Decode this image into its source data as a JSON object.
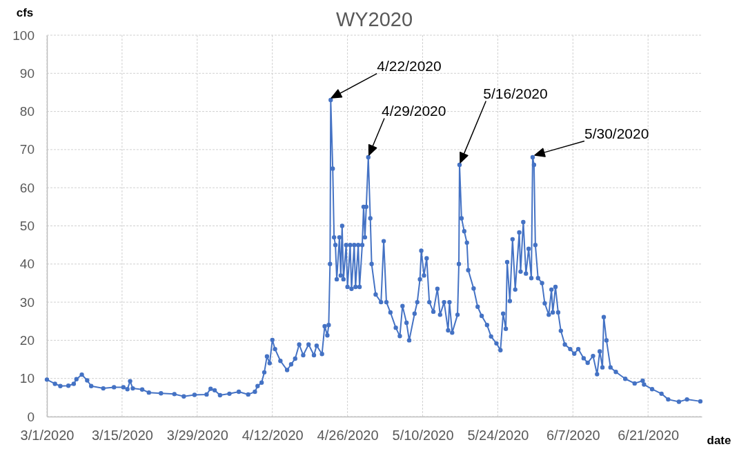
{
  "chart_data": {
    "type": "line",
    "title": "WY2020",
    "xlabel": "date",
    "ylabel": "cfs",
    "x": [
      "2020-03-01",
      "2020-03-02T12:00",
      "2020-03-03T12:00",
      "2020-03-05",
      "2020-03-06",
      "2020-03-06T12:00",
      "2020-03-07T12:00",
      "2020-03-08T12:00",
      "2020-03-09T06:00",
      "2020-03-11T12:00",
      "2020-03-13T12:00",
      "2020-03-15T06:00",
      "2020-03-16",
      "2020-03-16T12:00",
      "2020-03-17",
      "2020-03-18T18:00",
      "2020-03-20",
      "2020-03-22T06:00",
      "2020-03-24T18:00",
      "2020-03-26T12:00",
      "2020-03-28T12:00",
      "2020-03-30T18:00",
      "2020-03-31T12:00",
      "2020-04-01T06:00",
      "2020-04-02T06:00",
      "2020-04-04",
      "2020-04-05T18:00",
      "2020-04-07T12:00",
      "2020-04-08T18:00",
      "2020-04-09T06:00",
      "2020-04-10",
      "2020-04-10T12:00",
      "2020-04-11",
      "2020-04-11T12:00",
      "2020-04-12",
      "2020-04-12T12:00",
      "2020-04-13T12:00",
      "2020-04-14T18:00",
      "2020-04-15T12:00",
      "2020-04-16T06:00",
      "2020-04-17",
      "2020-04-17T18:00",
      "2020-04-18T18:00",
      "2020-04-19T18:00",
      "2020-04-20T06:00",
      "2020-04-21T06:00",
      "2020-04-21T18:00",
      "2020-04-22T06:00",
      "2020-04-22T12:00",
      "2020-04-22T18:00",
      "2020-04-22T21:00",
      "2020-04-23T06:00",
      "2020-04-23T12:00",
      "2020-04-23T18:00",
      "2020-04-24",
      "2020-04-24T12:00",
      "2020-04-24T18:00",
      "2020-04-25",
      "2020-04-25T06:00",
      "2020-04-25T18:00",
      "2020-04-26",
      "2020-04-26T12:00",
      "2020-04-26T18:00",
      "2020-04-27T06:00",
      "2020-04-27T12:00",
      "2020-04-28",
      "2020-04-28T06:00",
      "2020-04-28T18:00",
      "2020-04-29",
      "2020-04-29T06:00",
      "2020-04-29T12:00",
      "2020-04-29T21:00",
      "2020-04-30T06:00",
      "2020-04-30T12:00",
      "2020-05-01T06:00",
      "2020-05-02T06:00",
      "2020-05-02T18:00",
      "2020-05-03T06:00",
      "2020-05-04",
      "2020-05-05",
      "2020-05-05T18:00",
      "2020-05-06T06:00",
      "2020-05-07",
      "2020-05-07T12:00",
      "2020-05-08T12:00",
      "2020-05-09",
      "2020-05-09T12:00",
      "2020-05-09T18:00",
      "2020-05-10T06:00",
      "2020-05-10T18:00",
      "2020-05-11T06:00",
      "2020-05-12",
      "2020-05-12T18:00",
      "2020-05-13T06:00",
      "2020-05-14",
      "2020-05-14T18:00",
      "2020-05-15",
      "2020-05-15T12:00",
      "2020-05-16T12:00",
      "2020-05-16T18:00",
      "2020-05-16T21:00",
      "2020-05-17T06:00",
      "2020-05-17T18:00",
      "2020-05-18T06:00",
      "2020-05-18T12:00",
      "2020-05-19T12:00",
      "2020-05-20T06:00",
      "2020-05-21",
      "2020-05-22",
      "2020-05-22T18:00",
      "2020-05-23T18:00",
      "2020-05-24T12:00",
      "2020-05-25",
      "2020-05-25T12:00",
      "2020-05-25T18:00",
      "2020-05-26T06:00",
      "2020-05-26T18:00",
      "2020-05-27T06:00",
      "2020-05-28",
      "2020-05-28T06:00",
      "2020-05-28T18:00",
      "2020-05-29T06:00",
      "2020-05-29T18:00",
      "2020-05-30T06:00",
      "2020-05-30T12:00",
      "2020-05-30T18:00",
      "2020-05-31",
      "2020-05-31T12:00",
      "2020-06-01T06:00",
      "2020-06-01T18:00",
      "2020-06-02T12:00",
      "2020-06-03",
      "2020-06-03T06:00",
      "2020-06-03T18:00",
      "2020-06-04T06:00",
      "2020-06-04T18:00",
      "2020-06-05T12:00",
      "2020-06-06T12:00",
      "2020-06-07T06:00",
      "2020-06-08",
      "2020-06-09",
      "2020-06-09T18:00",
      "2020-06-10T18:00",
      "2020-06-11T12:00",
      "2020-06-12",
      "2020-06-12T12:00",
      "2020-06-12T18:00",
      "2020-06-13T06:00",
      "2020-06-14",
      "2020-06-15",
      "2020-06-16T18:00",
      "2020-06-18T12:00",
      "2020-06-20",
      "2020-06-20T06:00",
      "2020-06-21T18:00",
      "2020-06-23T12:00",
      "2020-06-24T18:00",
      "2020-06-26T18:00",
      "2020-06-28T06:00",
      "2020-06-30T18:00"
    ],
    "series": [
      {
        "color": "#4472c4",
        "values": [
          9.7,
          8.6,
          8.0,
          8.1,
          8.6,
          9.8,
          11.0,
          9.5,
          8.0,
          7.4,
          7.7,
          7.7,
          7.2,
          9.3,
          7.4,
          7.1,
          6.3,
          6.1,
          5.9,
          5.3,
          5.7,
          5.8,
          7.3,
          6.9,
          5.6,
          6.0,
          6.5,
          5.8,
          6.5,
          8.0,
          8.9,
          11.6,
          15.8,
          14.0,
          20.1,
          17.7,
          14.6,
          12.2,
          13.7,
          15.2,
          18.9,
          16.1,
          18.9,
          16.1,
          18.6,
          16.4,
          23.7,
          21.3,
          24,
          40,
          83,
          65,
          47,
          45,
          36,
          47,
          37,
          50,
          36,
          45,
          34,
          45,
          33.5,
          45,
          34,
          45,
          34,
          45,
          55,
          47,
          55,
          68,
          52,
          40,
          32,
          30,
          46,
          30,
          27.3,
          23.3,
          21.1,
          29,
          24.6,
          20,
          27,
          30,
          36,
          43.5,
          37,
          41.5,
          30,
          27.5,
          33.5,
          26.7,
          30,
          22.6,
          30,
          22,
          26.7,
          40,
          66,
          52,
          48.6,
          45.6,
          38.4,
          33.6,
          28.8,
          26.4,
          24,
          21,
          19.2,
          17.4,
          27,
          23,
          40.5,
          30.3,
          46.5,
          33.3,
          48.3,
          38,
          51,
          37.5,
          44,
          36.3,
          68,
          66,
          45,
          36.3,
          35,
          29.7,
          26.7,
          33.3,
          27.3,
          34,
          27.3,
          22.5,
          18.9,
          17.7,
          16.5,
          17.7,
          15.3,
          14.1,
          15.9,
          11.1,
          17.1,
          12.9,
          26.1,
          20,
          12.9,
          11.7,
          9.9,
          8.7,
          9.4,
          8.4,
          7.2,
          6.0,
          4.5,
          3.9,
          4.5,
          4.0
        ]
      }
    ],
    "xlim": [
      "2020-03-01",
      "2020-07-01"
    ],
    "xticks": [
      {
        "value": "2020-03-01",
        "label": "3/1/2020"
      },
      {
        "value": "2020-03-15",
        "label": "3/15/2020"
      },
      {
        "value": "2020-03-29",
        "label": "3/29/2020"
      },
      {
        "value": "2020-04-12",
        "label": "4/12/2020"
      },
      {
        "value": "2020-04-26",
        "label": "4/26/2020"
      },
      {
        "value": "2020-05-10",
        "label": "5/10/2020"
      },
      {
        "value": "2020-05-24",
        "label": "5/24/2020"
      },
      {
        "value": "2020-06-07",
        "label": "6/7/2020"
      },
      {
        "value": "2020-06-21",
        "label": "6/21/2020"
      }
    ],
    "ylim": [
      0,
      100
    ],
    "yticks": [
      0,
      10,
      20,
      30,
      40,
      50,
      60,
      70,
      80,
      90,
      100
    ],
    "grid": true,
    "marker": "circle",
    "annotations": [
      {
        "text": "4/22/2020",
        "x": "2020-04-22T21:00",
        "y": 83
      },
      {
        "text": "4/29/2020",
        "x": "2020-04-29T21:00",
        "y": 68
      },
      {
        "text": "5/16/2020",
        "x": "2020-05-16T21:00",
        "y": 66
      },
      {
        "text": "5/30/2020",
        "x": "2020-05-30T12:00",
        "y": 68
      }
    ]
  }
}
